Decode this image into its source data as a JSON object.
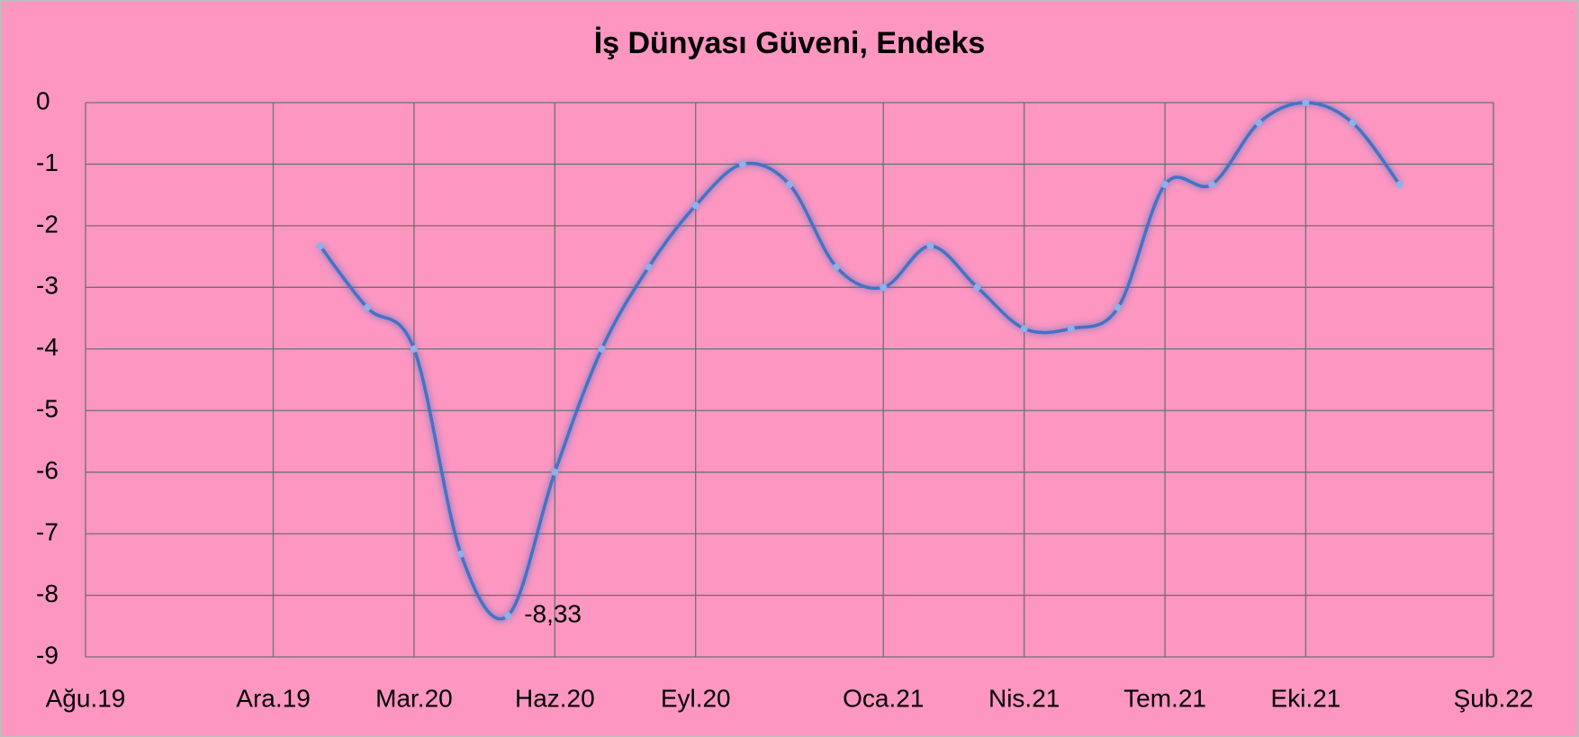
{
  "chart_data": {
    "type": "line",
    "title": "İş Dünyası Güveni, Endeks",
    "x": [
      "2020-01",
      "2020-02",
      "2020-03",
      "2020-04",
      "2020-05",
      "2020-06",
      "2020-07",
      "2020-08",
      "2020-09",
      "2020-10",
      "2020-11",
      "2020-12",
      "2021-01",
      "2021-02",
      "2021-03",
      "2021-04",
      "2021-05",
      "2021-06",
      "2021-07",
      "2021-08",
      "2021-09",
      "2021-10",
      "2021-11",
      "2021-12"
    ],
    "series": [
      {
        "name": "İş Dünyası Güveni",
        "color": "#4472c4",
        "values": [
          -2.33,
          -3.33,
          -4,
          -7.33,
          -8.33,
          -6,
          -4,
          -2.67,
          -1.67,
          -1,
          -1.33,
          -2.67,
          -3,
          -2.33,
          -3,
          -3.67,
          -3.67,
          -3.33,
          -1.33,
          -1.33,
          -0.33,
          0,
          -0.33,
          -1.33
        ],
        "value_labels": [
          null,
          null,
          null,
          null,
          "-8,33",
          null,
          null,
          null,
          null,
          null,
          null,
          null,
          null,
          null,
          null,
          null,
          null,
          null,
          null,
          null,
          null,
          null,
          null,
          null
        ]
      }
    ],
    "xlim": [
      "2019-08",
      "2022-02"
    ],
    "xticks": [
      {
        "value": "2019-08",
        "label": "Ağu.19"
      },
      {
        "value": "2019-12",
        "label": "Ara.19"
      },
      {
        "value": "2020-03",
        "label": "Mar.20"
      },
      {
        "value": "2020-06",
        "label": "Haz.20"
      },
      {
        "value": "2020-09",
        "label": "Eyl.20"
      },
      {
        "value": "2021-01",
        "label": "Oca.21"
      },
      {
        "value": "2021-04",
        "label": "Nis.21"
      },
      {
        "value": "2021-07",
        "label": "Tem.21"
      },
      {
        "value": "2021-10",
        "label": "Eki.21"
      },
      {
        "value": "2022-02",
        "label": "Şub.22"
      }
    ],
    "ylim": [
      -9,
      0
    ],
    "yticks": [
      0,
      -1,
      -2,
      -3,
      -4,
      -5,
      -6,
      -7,
      -8,
      -9
    ],
    "grid": true
  }
}
